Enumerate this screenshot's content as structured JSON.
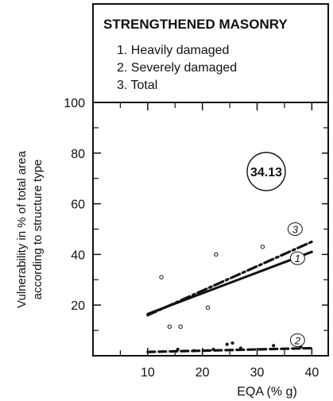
{
  "chart_data": {
    "type": "line",
    "title": "STRENGTHENED MASONRY",
    "legend": [
      "1. Heavily damaged",
      "2. Severely damaged",
      "3. Total"
    ],
    "xlabel": "EQA (% g)",
    "ylabel_lines": [
      "Vulnerability in  % of total area",
      "according to structure type"
    ],
    "xlim": [
      0,
      43
    ],
    "ylim": [
      0,
      100
    ],
    "x_ticks": [
      10,
      20,
      30,
      40
    ],
    "y_ticks": [
      20,
      40,
      60,
      80,
      100
    ],
    "annotation": "34.13",
    "series": [
      {
        "name": "1",
        "style": "solid",
        "points": [
          [
            10,
            16.5
          ],
          [
            40,
            41
          ]
        ]
      },
      {
        "name": "2",
        "style": "dashed",
        "points": [
          [
            10,
            1.5
          ],
          [
            40,
            3
          ]
        ]
      },
      {
        "name": "3",
        "style": "dash-dot",
        "points": [
          [
            10,
            16
          ],
          [
            40,
            45
          ]
        ]
      }
    ],
    "scatter": [
      [
        12.5,
        31
      ],
      [
        14,
        11.5
      ],
      [
        16,
        11.5
      ],
      [
        21,
        19
      ],
      [
        22.5,
        40
      ],
      [
        31,
        43
      ],
      [
        15.5,
        2.5
      ],
      [
        18.5,
        2
      ],
      [
        22,
        2.5
      ],
      [
        24.5,
        4.5
      ],
      [
        25.5,
        5
      ],
      [
        27,
        3
      ],
      [
        33,
        4
      ],
      [
        38,
        3.5
      ]
    ]
  }
}
